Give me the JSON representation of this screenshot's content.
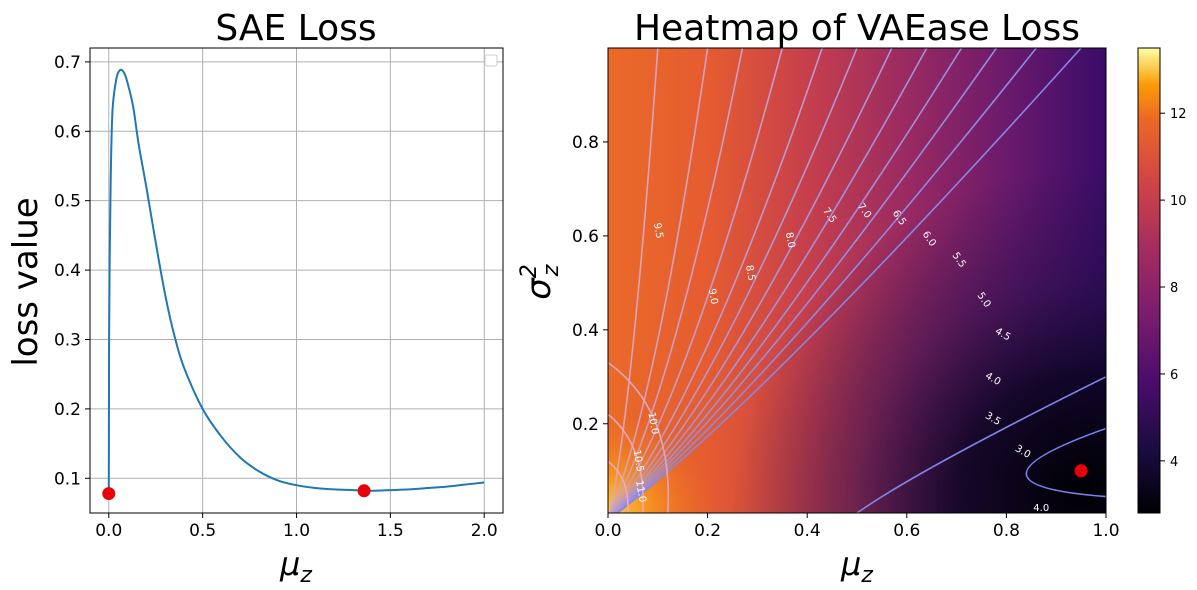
{
  "chart_data": [
    {
      "type": "line",
      "title": "SAE Loss",
      "xlabel": "μz",
      "ylabel": "loss value",
      "xlim": [
        -0.1,
        2.1
      ],
      "ylim": [
        0.05,
        0.72
      ],
      "grid": true,
      "legend": "top-right (empty)",
      "xticks": [
        "0.0",
        "0.5",
        "1.0",
        "1.5",
        "2.0"
      ],
      "yticks": [
        "0.1",
        "0.2",
        "0.3",
        "0.4",
        "0.5",
        "0.6",
        "0.7"
      ],
      "curve_color": "#1f77b4",
      "x": [
        0.0,
        0.002,
        0.005,
        0.01,
        0.02,
        0.04,
        0.06,
        0.08,
        0.1,
        0.13,
        0.16,
        0.2,
        0.25,
        0.3,
        0.35,
        0.4,
        0.5,
        0.6,
        0.7,
        0.8,
        0.9,
        1.0,
        1.1,
        1.2,
        1.3,
        1.36,
        1.4,
        1.5,
        1.6,
        1.7,
        1.8,
        1.9,
        2.0
      ],
      "y": [
        0.08,
        0.3,
        0.42,
        0.53,
        0.63,
        0.675,
        0.688,
        0.685,
        0.67,
        0.635,
        0.58,
        0.52,
        0.44,
        0.365,
        0.305,
        0.26,
        0.2,
        0.16,
        0.13,
        0.11,
        0.097,
        0.09,
        0.086,
        0.084,
        0.083,
        0.082,
        0.082,
        0.083,
        0.084,
        0.086,
        0.088,
        0.091,
        0.094
      ],
      "points": [
        {
          "x": 0.0,
          "y": 0.078,
          "color": "#e8000b"
        },
        {
          "x": 1.36,
          "y": 0.082,
          "color": "#e8000b"
        }
      ]
    },
    {
      "type": "heatmap",
      "title": "Heatmap of VAEase Loss",
      "xlabel": "μz",
      "ylabel": "σz²",
      "colormap": "inferno",
      "xlim": [
        0.0,
        1.0
      ],
      "ylim": [
        0.01,
        1.0
      ],
      "xticks": [
        "0.0",
        "0.2",
        "0.4",
        "0.6",
        "0.8",
        "1.0"
      ],
      "yticks": [
        "0.2",
        "0.4",
        "0.6",
        "0.8"
      ],
      "colorbar": {
        "range": [
          2.8,
          13.5
        ],
        "ticks": [
          "4",
          "6",
          "8",
          "10",
          "12"
        ]
      },
      "contour_levels": [
        "3.0",
        "3.5",
        "4.0",
        "4.5",
        "5.0",
        "5.5",
        "6.0",
        "6.5",
        "7.0",
        "7.5",
        "8.0",
        "8.5",
        "9.0",
        "9.5",
        "10.0",
        "10.5",
        "11.0"
      ],
      "bottom_label": "4.0",
      "minimum_point": {
        "x": 0.95,
        "y": 0.1,
        "color": "#e8000b"
      }
    }
  ]
}
